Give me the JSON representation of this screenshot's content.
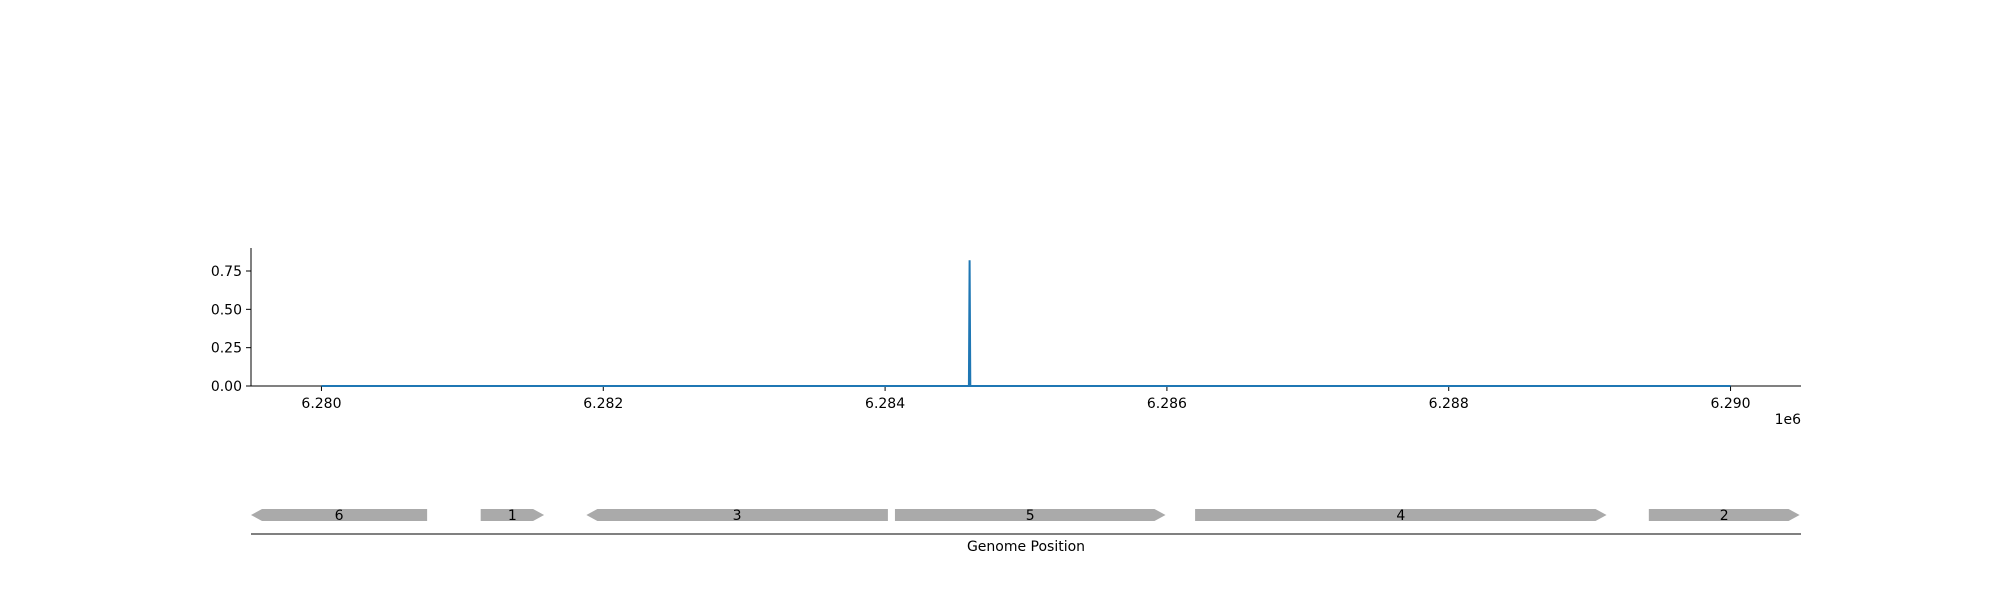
{
  "chart_data": [
    {
      "type": "line",
      "title": "",
      "xlabel": "",
      "ylabel": "",
      "x_offset_label": "1e6",
      "xlim": [
        6279500,
        6290500
      ],
      "ylim": [
        0,
        0.9
      ],
      "x_ticks": [
        6280000,
        6282000,
        6284000,
        6286000,
        6288000,
        6290000
      ],
      "x_tick_labels": [
        "6.280",
        "6.282",
        "6.284",
        "6.286",
        "6.288",
        "6.290"
      ],
      "y_ticks": [
        0,
        0.25,
        0.5,
        0.75
      ],
      "y_tick_labels": [
        "0.00",
        "0.25",
        "0.50",
        "0.75"
      ],
      "grid": false,
      "color": "#1f77b4",
      "series": [
        {
          "x": [
            6280000,
            6284595,
            6284600,
            6284605,
            6290000
          ],
          "y": [
            0,
            0,
            0.82,
            0,
            0
          ]
        }
      ]
    },
    {
      "type": "gene-track",
      "xlabel": "Genome Position",
      "color": "#aaaaaa",
      "genes": [
        {
          "label": "6",
          "start": 6279500,
          "end": 6280750,
          "strand": "-"
        },
        {
          "label": "1",
          "start": 6281130,
          "end": 6281580,
          "strand": "+"
        },
        {
          "label": "3",
          "start": 6281880,
          "end": 6284020,
          "strand": "-"
        },
        {
          "label": "5",
          "start": 6284070,
          "end": 6285990,
          "strand": "+"
        },
        {
          "label": "4",
          "start": 6286200,
          "end": 6289120,
          "strand": "+"
        },
        {
          "label": "2",
          "start": 6289420,
          "end": 6290490,
          "strand": "+"
        }
      ]
    }
  ]
}
